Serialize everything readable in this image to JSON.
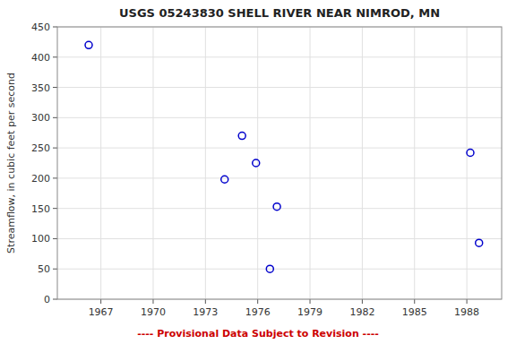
{
  "chart_data": {
    "type": "scatter",
    "title": "USGS 05243830 SHELL RIVER NEAR NIMROD, MN",
    "y_label": "Streamflow, in cubic feet per second",
    "annotations": [
      "---- Provisional Data Subject to Revision ----"
    ],
    "x": [
      1966.3,
      1974.1,
      1975.1,
      1975.9,
      1977.1,
      1976.7,
      1988.2,
      1988.7
    ],
    "values": [
      420,
      198,
      270,
      225,
      153,
      50,
      242,
      93
    ],
    "color": "#0000cc",
    "marker": "circle",
    "xlim": [
      1964.5,
      1990.0
    ],
    "ylim": [
      0,
      450
    ],
    "xticks": [
      1967,
      1970,
      1973,
      1976,
      1979,
      1982,
      1985,
      1988
    ],
    "yticks": [
      0,
      50,
      100,
      150,
      200,
      250,
      300,
      350,
      400,
      450
    ],
    "grid": true
  }
}
